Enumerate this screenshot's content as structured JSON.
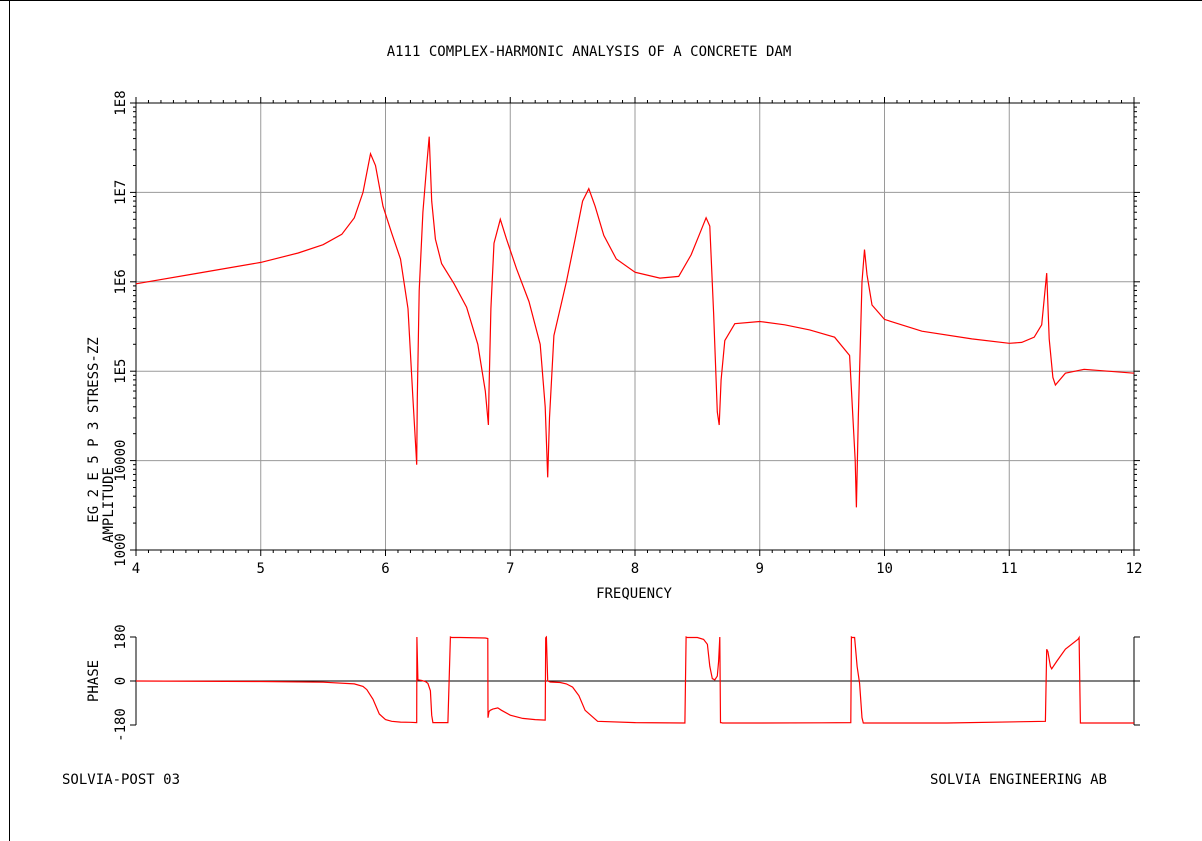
{
  "title": "A111 COMPLEX-HARMONIC ANALYSIS OF A CONCRETE DAM",
  "footer": {
    "left": "SOLVIA-POST 03",
    "right": "SOLVIA ENGINEERING AB"
  },
  "colors": {
    "curve": "#ff0000",
    "grid": "#9a9a9a",
    "axis": "#000000"
  },
  "chart_data": [
    {
      "type": "line",
      "name": "amplitude",
      "xlabel": "FREQUENCY",
      "ylabel_lines": [
        "EG 2 E 5 P 3 STRESS-ZZ",
        "AMPLITUDE"
      ],
      "xlim": [
        4,
        12
      ],
      "ylim": [
        1000,
        100000000
      ],
      "yscale": "log",
      "grid": true,
      "x_ticks": [
        "4",
        "5",
        "6",
        "7",
        "8",
        "9",
        "10",
        "11",
        "12"
      ],
      "y_ticks": [
        "1000",
        "10000",
        "1E5",
        "1E6",
        "1E7",
        "1E8"
      ],
      "x": [
        4.0,
        4.5,
        5.0,
        5.3,
        5.5,
        5.65,
        5.75,
        5.82,
        5.88,
        5.92,
        5.98,
        6.05,
        6.12,
        6.18,
        6.22,
        6.245,
        6.25,
        6.255,
        6.27,
        6.3,
        6.33,
        6.35,
        6.37,
        6.4,
        6.45,
        6.55,
        6.65,
        6.74,
        6.8,
        6.825,
        6.83,
        6.845,
        6.87,
        6.92,
        6.97,
        7.05,
        7.15,
        7.24,
        7.28,
        7.3,
        7.315,
        7.35,
        7.45,
        7.52,
        7.58,
        7.63,
        7.68,
        7.75,
        7.85,
        8.0,
        8.2,
        8.35,
        8.45,
        8.52,
        8.57,
        8.6,
        8.63,
        8.66,
        8.675,
        8.69,
        8.72,
        8.8,
        9.0,
        9.2,
        9.4,
        9.6,
        9.72,
        9.765,
        9.775,
        9.79,
        9.82,
        9.84,
        9.86,
        9.9,
        10.0,
        10.3,
        10.7,
        11.0,
        11.1,
        11.2,
        11.26,
        11.3,
        11.32,
        11.35,
        11.37,
        11.45,
        11.6,
        12.0
      ],
      "y": [
        950000,
        1250000,
        1650000,
        2100000,
        2600000,
        3400000,
        5200000,
        10000000,
        27000000,
        20000000,
        7000000,
        3500000,
        1800000,
        500000,
        50000,
        12000,
        9000,
        50000,
        800000,
        6000000,
        20000000,
        42000000,
        8000000,
        3000000,
        1600000,
        950000,
        520000,
        200000,
        60000,
        25000,
        60000,
        500000,
        2700000,
        5000000,
        3000000,
        1400000,
        600000,
        200000,
        40000,
        6500,
        30000,
        250000,
        1000000,
        3000000,
        8000000,
        11000000,
        7000000,
        3300000,
        1800000,
        1280000,
        1100000,
        1150000,
        2000000,
        3500000,
        5200000,
        4200000,
        450000,
        35000,
        25000,
        80000,
        220000,
        340000,
        360000,
        330000,
        290000,
        240000,
        150000,
        10000,
        3000,
        30000,
        1000000,
        2300000,
        1200000,
        550000,
        380000,
        280000,
        230000,
        205000,
        210000,
        240000,
        330000,
        1250000,
        230000,
        85000,
        70000,
        95000,
        105000,
        95000
      ]
    },
    {
      "type": "line",
      "name": "phase",
      "ylabel": "PHASE",
      "xlim": [
        4,
        12
      ],
      "ylim": [
        -180,
        180
      ],
      "grid": false,
      "y_ticks": [
        "180",
        "0",
        "-180"
      ],
      "x": [
        4.0,
        5.0,
        5.5,
        5.75,
        5.82,
        5.85,
        5.9,
        5.95,
        6.0,
        6.05,
        6.12,
        6.2,
        6.25,
        6.252,
        6.26,
        6.29,
        6.32,
        6.34,
        6.36,
        6.37,
        6.38,
        6.5,
        6.52,
        6.53,
        6.6,
        6.8,
        6.82,
        6.822,
        6.83,
        6.84,
        6.86,
        6.9,
        6.93,
        7.0,
        7.1,
        7.2,
        7.28,
        7.284,
        7.286,
        7.29,
        7.3,
        7.31,
        7.32,
        7.4,
        7.45,
        7.5,
        7.55,
        7.6,
        7.7,
        8.0,
        8.4,
        8.41,
        8.42,
        8.5,
        8.55,
        8.58,
        8.6,
        8.62,
        8.64,
        8.66,
        8.67,
        8.68,
        8.685,
        8.69,
        8.7,
        9.0,
        9.5,
        9.73,
        9.735,
        9.74,
        9.76,
        9.78,
        9.8,
        9.82,
        9.83,
        9.85,
        9.9,
        10.5,
        11.29,
        11.3,
        11.31,
        11.33,
        11.34,
        11.38,
        11.45,
        11.55,
        11.56,
        11.57,
        11.7,
        12.0
      ],
      "y": [
        0,
        -2,
        -5,
        -12,
        -22,
        -35,
        -75,
        -135,
        -158,
        -165,
        -168,
        -169,
        -170,
        180,
        5,
        2,
        -2,
        -10,
        -40,
        -140,
        -170,
        -170,
        180,
        178,
        178,
        176,
        174,
        -150,
        -125,
        -120,
        -115,
        -110,
        -120,
        -140,
        -153,
        -158,
        -160,
        175,
        178,
        180,
        0,
        -2,
        -4,
        -6,
        -12,
        -25,
        -60,
        -120,
        -165,
        -170,
        -172,
        180,
        178,
        178,
        170,
        150,
        60,
        10,
        5,
        20,
        80,
        180,
        -170,
        -170,
        -172,
        -172,
        -171,
        -170,
        180,
        178,
        178,
        60,
        -10,
        -150,
        -172,
        -172,
        -172,
        -172,
        -165,
        130,
        120,
        60,
        50,
        80,
        130,
        170,
        178,
        -172,
        -172,
        -172
      ]
    }
  ]
}
